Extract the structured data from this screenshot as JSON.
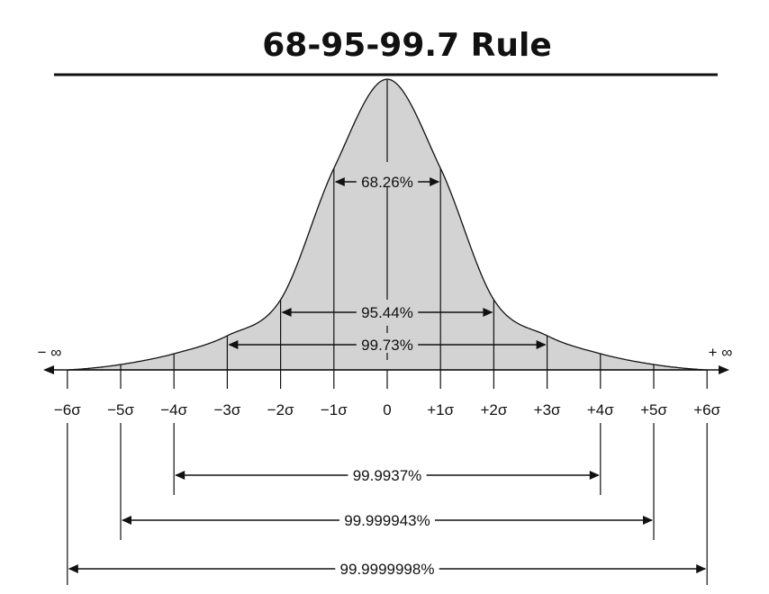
{
  "title": "68-95-99.7 Rule",
  "ticks": [
    "−6σ",
    "−5σ",
    "−4σ",
    "−3σ",
    "−2σ",
    "−1σ",
    "0",
    "+1σ",
    "+2σ",
    "+3σ",
    "+4σ",
    "+5σ",
    "+6σ"
  ],
  "neg_infinity": "− ∞",
  "pos_infinity": "+ ∞",
  "intervals": [
    {
      "sigma": 1,
      "label": "68.26%"
    },
    {
      "sigma": 2,
      "label": "95.44%"
    },
    {
      "sigma": 3,
      "label": "99.73%"
    },
    {
      "sigma": 4,
      "label": "99.9937%"
    },
    {
      "sigma": 5,
      "label": "99.999943%"
    },
    {
      "sigma": 6,
      "label": "99.9999998%"
    }
  ],
  "colors": {
    "fill": "#d3d3d3",
    "line": "#111111"
  }
}
